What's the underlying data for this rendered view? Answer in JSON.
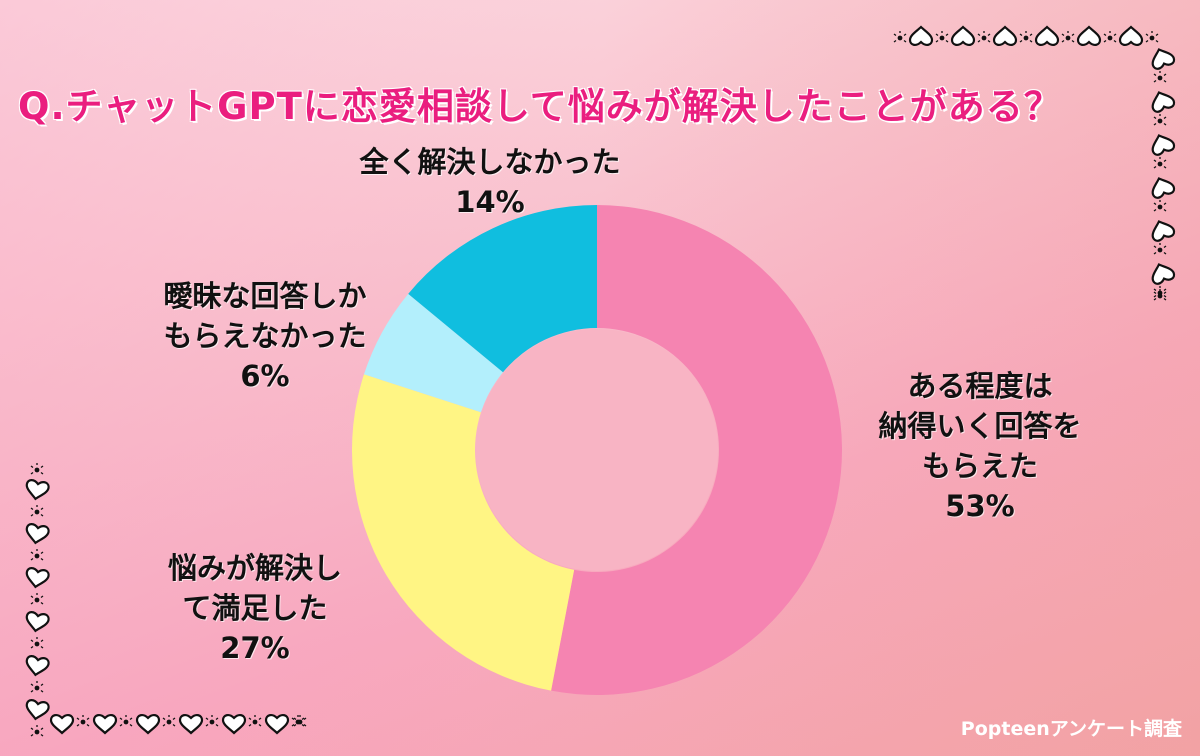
{
  "title": "Q.チャットGPTに恋愛相談して悩みが解決したことがある？",
  "credit": "Popteenアンケート調査",
  "colors": {
    "title": "#ea1e7f",
    "slice_some": "#f584b1",
    "slice_solved": "#fff584",
    "slice_vague": "#b3effc",
    "slice_none": "#10bedf",
    "hole": "#f8b4c4"
  },
  "labels": {
    "some": {
      "lines": [
        "ある程度は",
        "納得いく回答を",
        "もらえた"
      ],
      "pct": "53%"
    },
    "solved": {
      "lines": [
        "悩みが解決し",
        "て満足した"
      ],
      "pct": "27%"
    },
    "vague": {
      "lines": [
        "曖昧な回答しか",
        "もらえなかった"
      ],
      "pct": "6%"
    },
    "none": {
      "lines": [
        "全く解決しなかった"
      ],
      "pct": "14%"
    }
  },
  "decorations": {
    "top_right_border": "heart-chain-border",
    "bottom_left_border": "heart-chain-border"
  },
  "chart_data": {
    "type": "pie",
    "subtype": "donut",
    "title": "Q.チャットGPTに恋愛相談して悩みが解決したことがある？",
    "categories": [
      "ある程度は納得いく回答をもらえた",
      "悩みが解決して満足した",
      "曖昧な回答しかもらえなかった",
      "全く解決しなかった"
    ],
    "values": [
      53,
      27,
      6,
      14
    ],
    "unit": "%",
    "colors": [
      "#f584b1",
      "#fff584",
      "#b3effc",
      "#10bedf"
    ],
    "start_angle": "12 o'clock",
    "direction": "clockwise",
    "legend": "none (direct labels)",
    "source": "Popteenアンケート調査"
  }
}
